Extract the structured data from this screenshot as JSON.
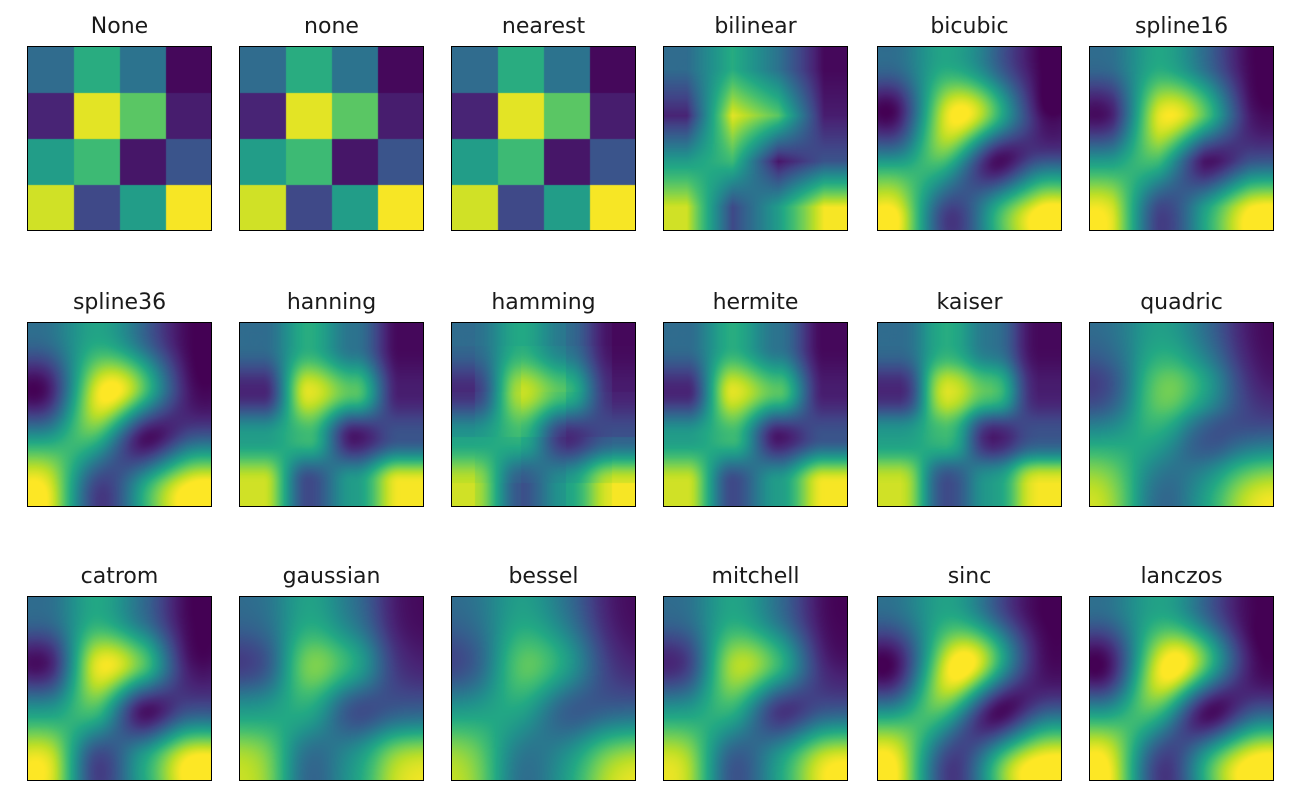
{
  "chart_data": {
    "type": "heatmap",
    "colormap": "viridis",
    "grid": false,
    "axes_ticks": false,
    "data": [
      [
        0.35,
        0.62,
        0.38,
        0.02
      ],
      [
        0.1,
        0.96,
        0.74,
        0.08
      ],
      [
        0.55,
        0.68,
        0.06,
        0.26
      ],
      [
        0.93,
        0.22,
        0.55,
        0.99
      ]
    ],
    "panels": [
      {
        "title": "None",
        "method": "nearest"
      },
      {
        "title": "none",
        "method": "nearest"
      },
      {
        "title": "nearest",
        "method": "nearest"
      },
      {
        "title": "bilinear",
        "method": "bilinear"
      },
      {
        "title": "bicubic",
        "method": "bicubic"
      },
      {
        "title": "spline16",
        "method": "spline16"
      },
      {
        "title": "spline36",
        "method": "spline36"
      },
      {
        "title": "hanning",
        "method": "hanning"
      },
      {
        "title": "hamming",
        "method": "hamming"
      },
      {
        "title": "hermite",
        "method": "hermite"
      },
      {
        "title": "kaiser",
        "method": "kaiser"
      },
      {
        "title": "quadric",
        "method": "quadric"
      },
      {
        "title": "catrom",
        "method": "catrom"
      },
      {
        "title": "gaussian",
        "method": "gaussian"
      },
      {
        "title": "bessel",
        "method": "bessel"
      },
      {
        "title": "mitchell",
        "method": "mitchell"
      },
      {
        "title": "sinc",
        "method": "sinc"
      },
      {
        "title": "lanczos",
        "method": "lanczos"
      }
    ]
  }
}
